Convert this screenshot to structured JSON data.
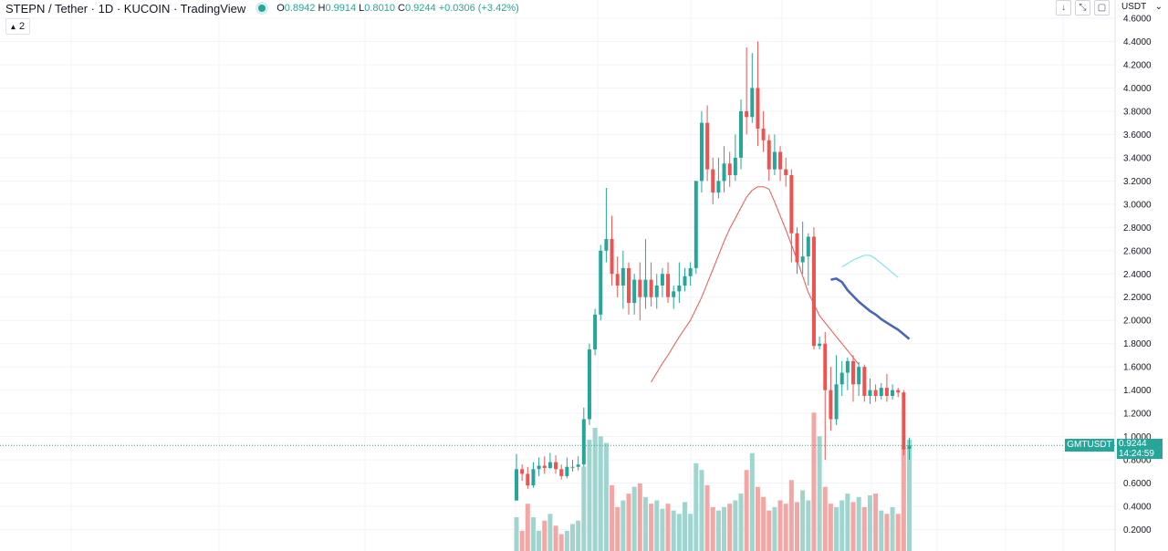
{
  "legend": {
    "symbol": "STEPN / Tether · 1D · KUCOIN · TradingView",
    "open_label": "O",
    "open": "0.8942",
    "high_label": "H",
    "high": "0.9914",
    "low_label": "L",
    "low": "0.8010",
    "close_label": "C",
    "close": "0.9244",
    "change": "+0.0306 (+3.42%)"
  },
  "indicator_toggle": {
    "count": "2"
  },
  "currency": "USDT",
  "price_tag": {
    "symbol": "GMTUSDT",
    "price": "0.9244",
    "countdown": "14:24:59"
  },
  "colors": {
    "up": "#26a69a",
    "down": "#ef5350",
    "up_vol": "#9fd4cf",
    "down_vol": "#f3a6a4",
    "ma_fast": "#ef5350",
    "ma_mid": "#4a67b5",
    "ma_slow": "#8fe3ee"
  },
  "chart_data": {
    "type": "candlestick",
    "ylim": [
      0.0,
      4.6
    ],
    "y_ticks": [
      "0.2000",
      "0.4000",
      "0.6000",
      "0.8000",
      "1.0000",
      "1.2000",
      "1.4000",
      "1.6000",
      "1.8000",
      "2.0000",
      "2.2000",
      "2.4000",
      "2.6000",
      "2.8000",
      "3.0000",
      "3.2000",
      "3.4000",
      "3.6000",
      "3.8000",
      "4.0000",
      "4.2000",
      "4.4000",
      "4.6000"
    ],
    "candles": [
      [
        0.45,
        0.72,
        0.85,
        0.45
      ],
      [
        0.72,
        0.68,
        0.76,
        0.62
      ],
      [
        0.68,
        0.58,
        0.74,
        0.55
      ],
      [
        0.58,
        0.72,
        0.78,
        0.56
      ],
      [
        0.72,
        0.75,
        0.82,
        0.66
      ],
      [
        0.75,
        0.73,
        0.83,
        0.68
      ],
      [
        0.73,
        0.78,
        0.86,
        0.72
      ],
      [
        0.78,
        0.72,
        0.84,
        0.68
      ],
      [
        0.72,
        0.66,
        0.76,
        0.63
      ],
      [
        0.66,
        0.74,
        0.82,
        0.64
      ],
      [
        0.74,
        0.74,
        0.8,
        0.7
      ],
      [
        0.74,
        0.76,
        0.83,
        0.71
      ],
      [
        0.76,
        1.15,
        1.25,
        0.74
      ],
      [
        1.15,
        1.75,
        1.8,
        1.1
      ],
      [
        1.75,
        2.05,
        2.1,
        1.7
      ],
      [
        2.05,
        2.6,
        2.65,
        2.0
      ],
      [
        2.6,
        2.7,
        3.14,
        2.5
      ],
      [
        2.7,
        2.4,
        2.9,
        2.3
      ],
      [
        2.4,
        2.3,
        2.55,
        2.2
      ],
      [
        2.3,
        2.45,
        2.6,
        2.1
      ],
      [
        2.45,
        2.15,
        2.5,
        2.05
      ],
      [
        2.15,
        2.35,
        2.4,
        2.05
      ],
      [
        2.35,
        2.2,
        2.5,
        2.0
      ],
      [
        2.2,
        2.35,
        2.7,
        2.1
      ],
      [
        2.35,
        2.2,
        2.5,
        2.12
      ],
      [
        2.2,
        2.3,
        2.4,
        2.1
      ],
      [
        2.3,
        2.4,
        2.45,
        2.2
      ],
      [
        2.4,
        2.2,
        2.5,
        2.15
      ],
      [
        2.2,
        2.25,
        2.3,
        2.1
      ],
      [
        2.25,
        2.3,
        2.5,
        2.15
      ],
      [
        2.3,
        2.38,
        2.45,
        2.25
      ],
      [
        2.38,
        2.45,
        2.5,
        2.3
      ],
      [
        2.45,
        3.2,
        3.2,
        2.4
      ],
      [
        3.2,
        3.7,
        3.8,
        3.1
      ],
      [
        3.7,
        3.3,
        3.85,
        3.2
      ],
      [
        3.3,
        3.1,
        3.4,
        3.0
      ],
      [
        3.1,
        3.2,
        3.4,
        3.05
      ],
      [
        3.2,
        3.35,
        3.5,
        3.1
      ],
      [
        3.35,
        3.25,
        3.45,
        3.15
      ],
      [
        3.25,
        3.4,
        3.6,
        3.2
      ],
      [
        3.4,
        3.8,
        3.9,
        3.3
      ],
      [
        3.8,
        3.75,
        4.35,
        3.6
      ],
      [
        3.75,
        4.0,
        4.3,
        3.7
      ],
      [
        4.0,
        3.65,
        4.4,
        3.5
      ],
      [
        3.65,
        3.55,
        3.8,
        3.45
      ],
      [
        3.55,
        3.3,
        3.6,
        3.2
      ],
      [
        3.3,
        3.45,
        3.6,
        3.25
      ],
      [
        3.45,
        3.3,
        3.5,
        3.2
      ],
      [
        3.3,
        3.25,
        3.4,
        3.15
      ],
      [
        3.25,
        2.75,
        3.3,
        2.5
      ],
      [
        2.75,
        2.5,
        2.8,
        2.4
      ],
      [
        2.5,
        2.55,
        2.85,
        2.4
      ],
      [
        2.55,
        2.72,
        2.75,
        2.3
      ],
      [
        2.72,
        1.78,
        2.8,
        1.75
      ],
      [
        1.78,
        1.8,
        1.86,
        1.75
      ],
      [
        1.8,
        1.4,
        1.9,
        0.8
      ],
      [
        1.4,
        1.15,
        1.6,
        1.05
      ],
      [
        1.15,
        1.45,
        1.7,
        1.1
      ],
      [
        1.45,
        1.55,
        1.65,
        1.35
      ],
      [
        1.55,
        1.65,
        1.68,
        1.4
      ],
      [
        1.65,
        1.45,
        1.7,
        1.3
      ],
      [
        1.45,
        1.6,
        1.64,
        1.35
      ],
      [
        1.6,
        1.35,
        1.62,
        1.3
      ],
      [
        1.35,
        1.4,
        1.5,
        1.28
      ],
      [
        1.4,
        1.35,
        1.45,
        1.3
      ],
      [
        1.35,
        1.42,
        1.46,
        1.32
      ],
      [
        1.42,
        1.35,
        1.54,
        1.3
      ],
      [
        1.35,
        1.4,
        1.45,
        1.32
      ],
      [
        1.4,
        1.38,
        1.42,
        1.34
      ],
      [
        1.38,
        0.89,
        1.4,
        0.84
      ],
      [
        0.8942,
        0.9244,
        0.9914,
        0.801
      ]
    ],
    "volume_levels": [
      0.2,
      0.12,
      0.28,
      0.2,
      0.12,
      0.18,
      0.22,
      0.15,
      0.1,
      0.12,
      0.16,
      0.18,
      0.5,
      0.66,
      0.73,
      0.68,
      0.64,
      0.39,
      0.26,
      0.3,
      0.34,
      0.38,
      0.4,
      0.32,
      0.28,
      0.3,
      0.25,
      0.28,
      0.24,
      0.22,
      0.29,
      0.22,
      0.52,
      0.48,
      0.39,
      0.26,
      0.24,
      0.26,
      0.28,
      0.3,
      0.34,
      0.48,
      0.58,
      0.38,
      0.32,
      0.24,
      0.26,
      0.3,
      0.28,
      0.42,
      0.29,
      0.36,
      0.3,
      0.82,
      0.68,
      0.38,
      0.28,
      0.26,
      0.3,
      0.34,
      0.29,
      0.32,
      0.26,
      0.33,
      0.34,
      0.24,
      0.22,
      0.26,
      0.22,
      0.62,
      0.66
    ],
    "ma_fast": {
      "start": 24,
      "values": [
        1.47,
        1.55,
        1.63,
        1.7,
        1.78,
        1.86,
        1.93,
        2.0,
        2.1,
        2.2,
        2.32,
        2.44,
        2.56,
        2.68,
        2.79,
        2.88,
        2.97,
        3.06,
        3.12,
        3.15,
        3.15,
        3.13,
        3.02,
        2.9,
        2.78,
        2.65,
        2.52,
        2.38,
        2.24,
        2.14,
        2.04,
        1.98,
        1.92,
        1.86,
        1.8,
        1.74,
        1.68,
        1.62
      ]
    },
    "ma_mid": {
      "start": 56,
      "values": [
        2.35,
        2.36,
        2.33,
        2.26,
        2.21,
        2.16,
        2.12,
        2.08,
        2.05,
        2.01,
        1.98,
        1.95,
        1.92,
        1.88,
        1.84
      ]
    },
    "ma_slow": {
      "start": 58,
      "values": [
        2.46,
        2.49,
        2.52,
        2.54,
        2.56,
        2.56,
        2.53,
        2.49,
        2.45,
        2.41,
        2.37
      ]
    }
  }
}
